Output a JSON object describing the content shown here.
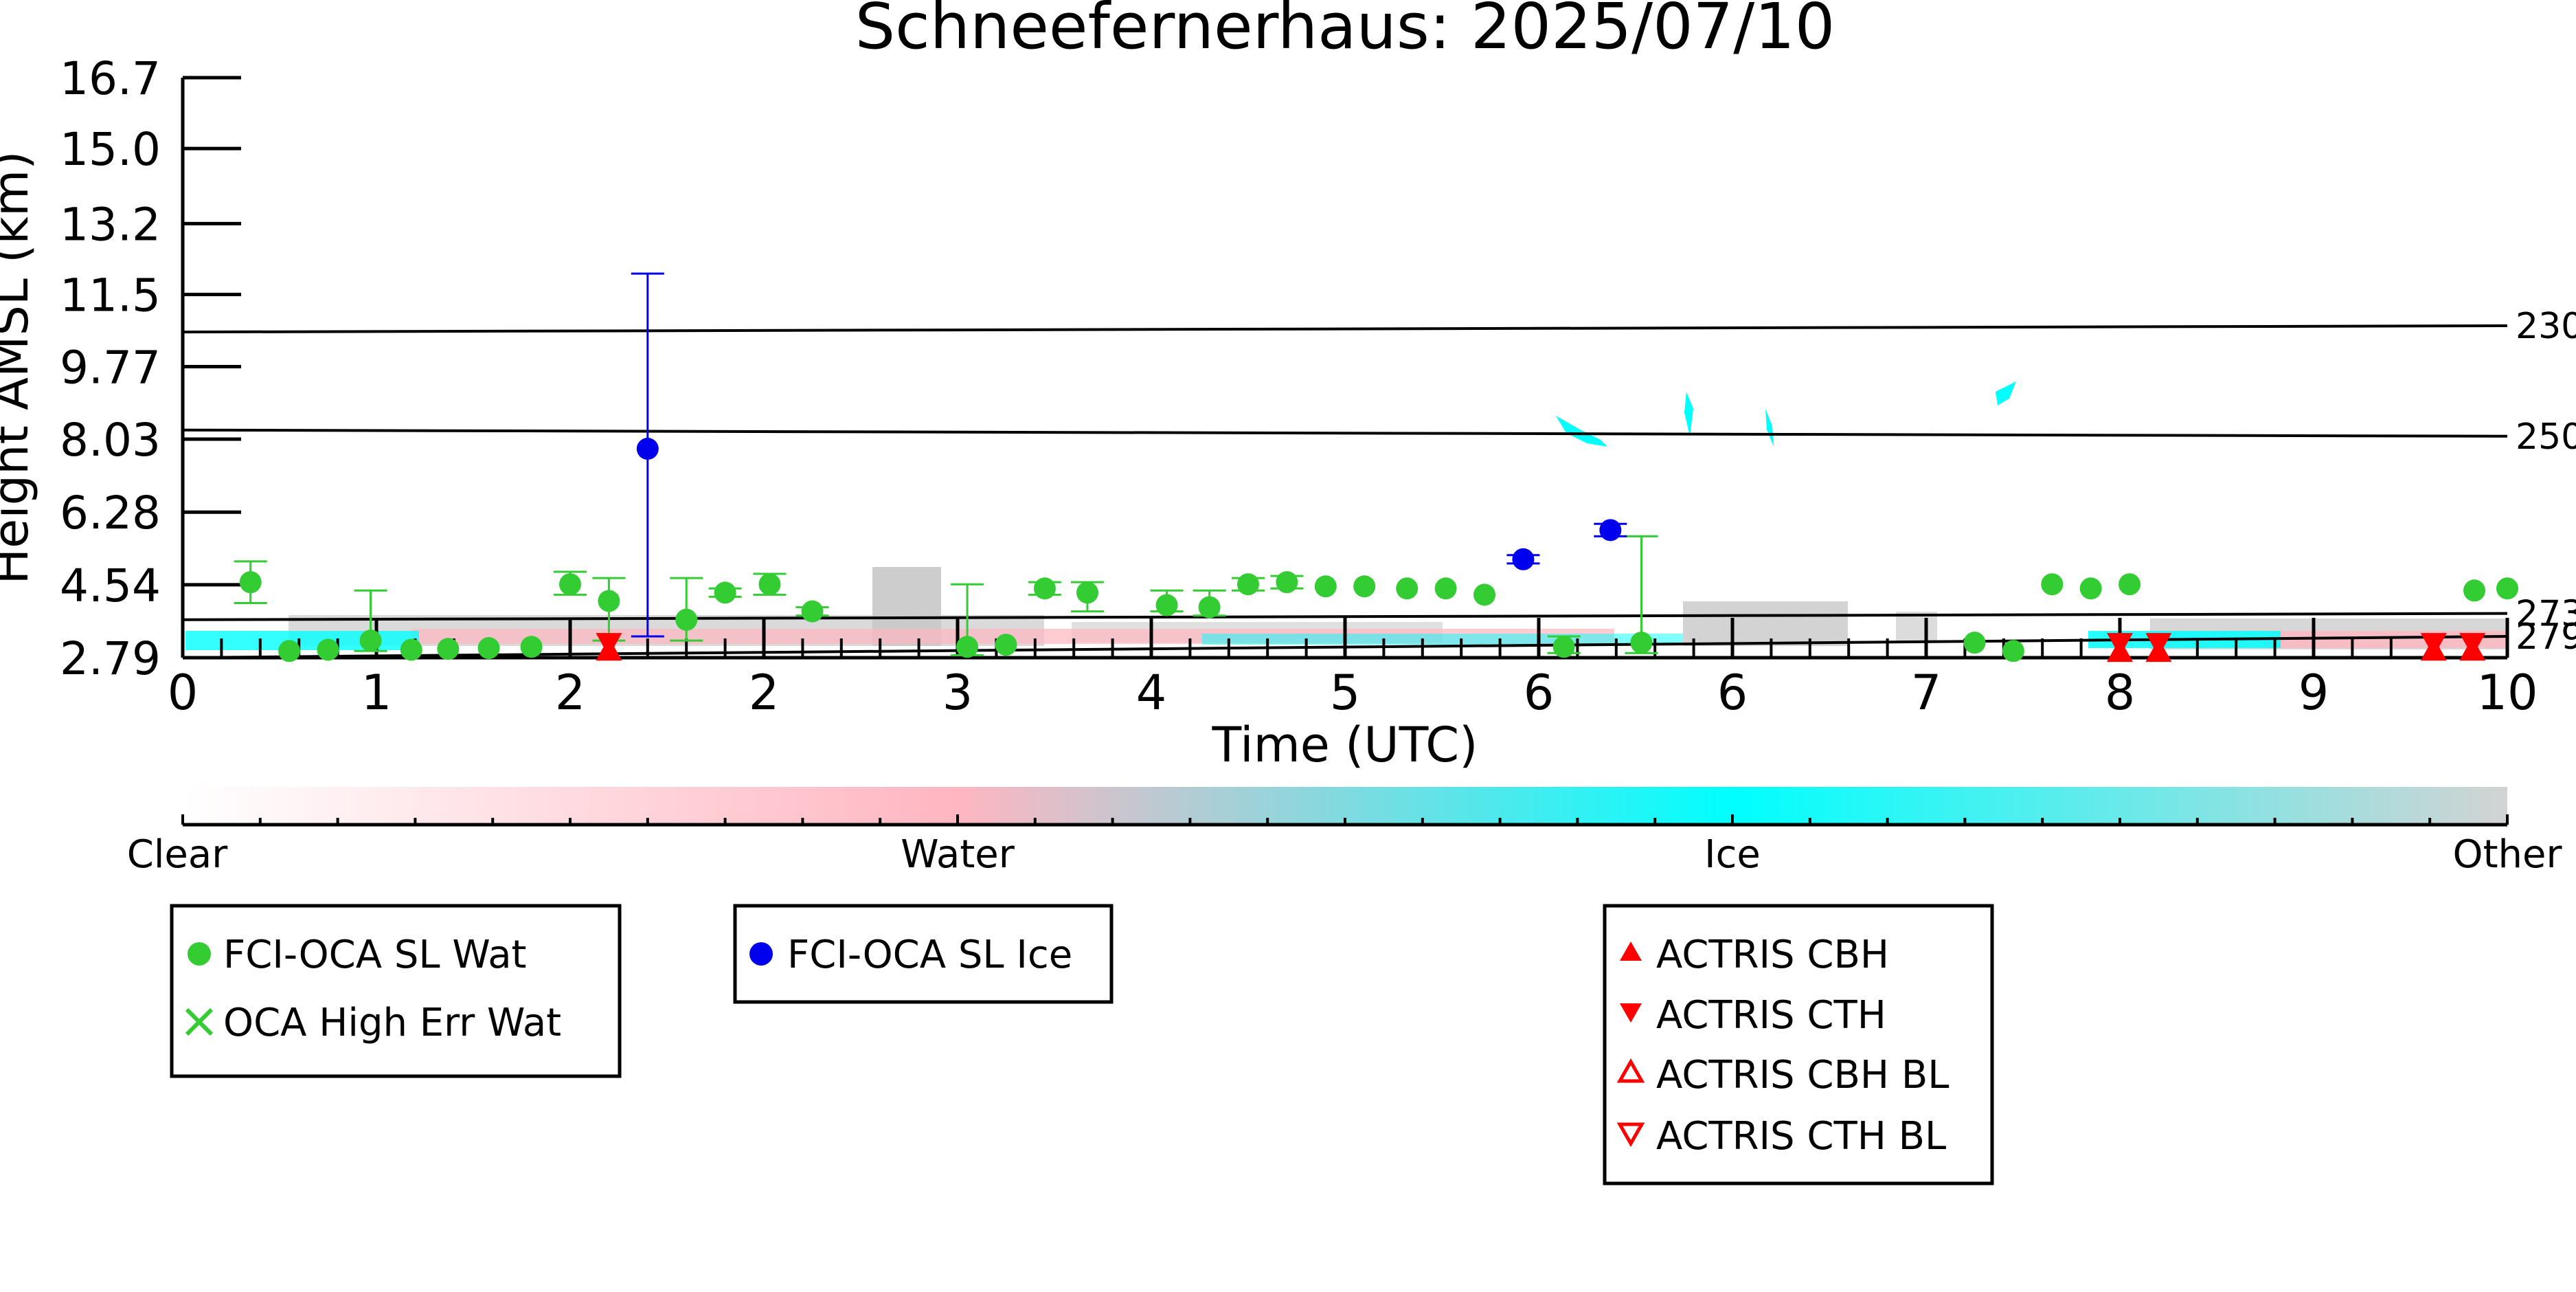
{
  "chart_data": {
    "type": "scatter",
    "title": "Schneefernerhaus: 2025/07/10",
    "xlabel": "Time (UTC)",
    "ylabel": "Height AMSL (km)",
    "xlim": [
      0,
      12
    ],
    "ylim": [
      2.79,
      16.7
    ],
    "grid": false,
    "x_ticks": [
      {
        "value": 0,
        "label": "0"
      },
      {
        "value": 1,
        "label": "1"
      },
      {
        "value": 2,
        "label": "2"
      },
      {
        "value": 3,
        "label": "2"
      },
      {
        "value": 4,
        "label": "3"
      },
      {
        "value": 5,
        "label": "4"
      },
      {
        "value": 6,
        "label": "5"
      },
      {
        "value": 7,
        "label": "6"
      },
      {
        "value": 8,
        "label": "6"
      },
      {
        "value": 9,
        "label": "7"
      },
      {
        "value": 10,
        "label": "8"
      },
      {
        "value": 11,
        "label": "9"
      },
      {
        "value": 12,
        "label": "10"
      }
    ],
    "y_ticks": [
      {
        "value": 2.79,
        "label": "2.79"
      },
      {
        "value": 4.54,
        "label": "4.54"
      },
      {
        "value": 6.28,
        "label": "6.28"
      },
      {
        "value": 8.03,
        "label": "8.03"
      },
      {
        "value": 9.77,
        "label": "9.77"
      },
      {
        "value": 11.5,
        "label": "11.5"
      },
      {
        "value": 13.2,
        "label": "13.2"
      },
      {
        "value": 15.0,
        "label": "15.0"
      },
      {
        "value": 16.7,
        "label": "16.7"
      }
    ],
    "isotherms": [
      {
        "label": "230",
        "y_start": 10.6,
        "y_end": 10.75
      },
      {
        "label": "250",
        "y_start": 8.25,
        "y_end": 8.1
      },
      {
        "label": "273",
        "y_start": 3.7,
        "y_end": 3.85
      },
      {
        "label": "279",
        "y_start": 2.79,
        "y_end": 3.3
      }
    ],
    "series": [
      {
        "name": "FCI-OCA SL Wat",
        "color": "#33cc33",
        "marker": "circle",
        "points": [
          {
            "x": 0.35,
            "y": 4.6,
            "lo": 4.1,
            "hi": 5.1
          },
          {
            "x": 0.55,
            "y": 2.95
          },
          {
            "x": 0.75,
            "y": 2.98
          },
          {
            "x": 0.97,
            "y": 3.2,
            "lo": 2.95,
            "hi": 4.4
          },
          {
            "x": 1.18,
            "y": 2.98
          },
          {
            "x": 1.37,
            "y": 3.0
          },
          {
            "x": 1.58,
            "y": 3.02
          },
          {
            "x": 1.8,
            "y": 3.05
          },
          {
            "x": 2.0,
            "y": 4.55,
            "lo": 4.3,
            "hi": 4.85
          },
          {
            "x": 2.2,
            "y": 4.15,
            "lo": 3.2,
            "hi": 4.7
          },
          {
            "x": 2.6,
            "y": 3.7,
            "lo": 3.2,
            "hi": 4.7
          },
          {
            "x": 2.8,
            "y": 4.35,
            "lo": 4.25,
            "hi": 4.45
          },
          {
            "x": 3.03,
            "y": 4.55,
            "lo": 4.3,
            "hi": 4.8
          },
          {
            "x": 3.25,
            "y": 3.9,
            "lo": 3.8,
            "hi": 4.0
          },
          {
            "x": 4.05,
            "y": 3.05,
            "lo": 2.85,
            "hi": 4.55
          },
          {
            "x": 4.25,
            "y": 3.1
          },
          {
            "x": 4.45,
            "y": 4.45,
            "lo": 4.3,
            "hi": 4.6
          },
          {
            "x": 4.67,
            "y": 4.35,
            "lo": 3.9,
            "hi": 4.6
          },
          {
            "x": 5.08,
            "y": 4.05,
            "lo": 3.9,
            "hi": 4.4
          },
          {
            "x": 5.3,
            "y": 4.0,
            "lo": 3.8,
            "hi": 4.4
          },
          {
            "x": 5.5,
            "y": 4.55,
            "lo": 4.4,
            "hi": 4.7
          },
          {
            "x": 5.7,
            "y": 4.6,
            "lo": 4.45,
            "hi": 4.75
          },
          {
            "x": 5.9,
            "y": 4.5
          },
          {
            "x": 6.1,
            "y": 4.5
          },
          {
            "x": 6.32,
            "y": 4.45
          },
          {
            "x": 6.52,
            "y": 4.45
          },
          {
            "x": 6.72,
            "y": 4.3
          },
          {
            "x": 7.13,
            "y": 3.05,
            "lo": 2.9,
            "hi": 3.3
          },
          {
            "x": 7.53,
            "y": 3.15,
            "lo": 2.9,
            "hi": 5.7
          },
          {
            "x": 9.25,
            "y": 3.15
          },
          {
            "x": 9.45,
            "y": 2.95
          },
          {
            "x": 9.65,
            "y": 4.55
          },
          {
            "x": 9.85,
            "y": 4.45
          },
          {
            "x": 10.05,
            "y": 4.55
          },
          {
            "x": 11.83,
            "y": 4.4
          },
          {
            "x": 12.0,
            "y": 4.45
          }
        ]
      },
      {
        "name": "OCA High Err Wat",
        "color": "#33cc33",
        "marker": "x",
        "points": []
      },
      {
        "name": "FCI-OCA SL Ice",
        "color": "#0000ee",
        "marker": "circle",
        "points": [
          {
            "x": 2.4,
            "y": 7.8,
            "lo": 3.3,
            "hi": 12.0
          },
          {
            "x": 6.92,
            "y": 5.15,
            "lo": 5.05,
            "hi": 5.25
          },
          {
            "x": 7.37,
            "y": 5.85,
            "lo": 5.7,
            "hi": 6.0
          }
        ]
      },
      {
        "name": "ACTRIS CBH",
        "color": "#ff0000",
        "marker": "triangle-up",
        "points": [
          {
            "x": 2.2,
            "y": 2.95
          },
          {
            "x": 10.0,
            "y": 2.92
          },
          {
            "x": 10.2,
            "y": 2.92
          },
          {
            "x": 11.62,
            "y": 2.95
          },
          {
            "x": 11.82,
            "y": 2.95
          }
        ]
      },
      {
        "name": "ACTRIS CTH",
        "color": "#ff0000",
        "marker": "triangle-down",
        "points": [
          {
            "x": 2.2,
            "y": 3.15
          },
          {
            "x": 10.0,
            "y": 3.15
          },
          {
            "x": 10.2,
            "y": 3.15
          },
          {
            "x": 11.62,
            "y": 3.15
          },
          {
            "x": 11.82,
            "y": 3.15
          }
        ]
      },
      {
        "name": "ACTRIS CBH BL",
        "color": "#ff0000",
        "marker": "triangle-up-open",
        "points": []
      },
      {
        "name": "ACTRIS CTH BL",
        "color": "#ff0000",
        "marker": "triangle-down-open",
        "points": []
      }
    ],
    "classification_colorbar": {
      "labels": [
        "Clear",
        "Water",
        "Ice",
        "Other"
      ],
      "colors": [
        "#ffffff",
        "#ffb6c1",
        "#00ffff",
        "#d3d3d3"
      ]
    },
    "legends": [
      {
        "entries": [
          "FCI-OCA SL Wat",
          "OCA High Err Wat"
        ]
      },
      {
        "entries": [
          "FCI-OCA SL Ice"
        ]
      },
      {
        "entries": [
          "ACTRIS CBH",
          "ACTRIS CTH",
          "ACTRIS CBH BL",
          "ACTRIS CTH BL"
        ]
      }
    ]
  }
}
